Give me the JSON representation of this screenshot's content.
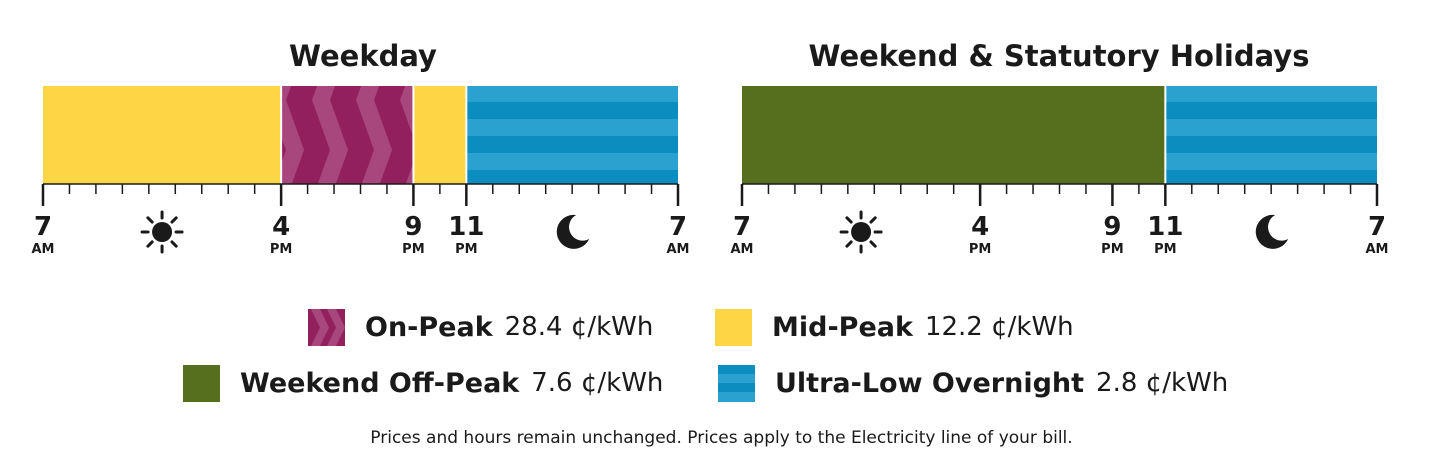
{
  "panels": [
    {
      "title": "Weekday",
      "segments": [
        {
          "from": 7,
          "to": 16,
          "period": "mid_peak"
        },
        {
          "from": 16,
          "to": 21,
          "period": "on_peak"
        },
        {
          "from": 21,
          "to": 23,
          "period": "mid_peak"
        },
        {
          "from": 23,
          "to": 31,
          "period": "ultra_low"
        }
      ],
      "labels": [
        {
          "hour": 7,
          "text": "7",
          "ampm": "AM"
        },
        {
          "hour": 16,
          "text": "4",
          "ampm": "PM"
        },
        {
          "hour": 21,
          "text": "9",
          "ampm": "PM"
        },
        {
          "hour": 23,
          "text": "11",
          "ampm": "PM"
        },
        {
          "hour": 31,
          "text": "7",
          "ampm": "AM"
        }
      ],
      "icons": [
        {
          "hour": 11.5,
          "name": "sun-icon"
        },
        {
          "hour": 27,
          "name": "moon-icon"
        }
      ]
    },
    {
      "title": "Weekend & Statutory Holidays",
      "segments": [
        {
          "from": 7,
          "to": 23,
          "period": "weekend_off_peak"
        },
        {
          "from": 23,
          "to": 31,
          "period": "ultra_low"
        }
      ],
      "labels": [
        {
          "hour": 7,
          "text": "7",
          "ampm": "AM"
        },
        {
          "hour": 16,
          "text": "4",
          "ampm": "PM"
        },
        {
          "hour": 21,
          "text": "9",
          "ampm": "PM"
        },
        {
          "hour": 23,
          "text": "11",
          "ampm": "PM"
        },
        {
          "hour": 31,
          "text": "7",
          "ampm": "AM"
        }
      ],
      "icons": [
        {
          "hour": 11.5,
          "name": "sun-icon"
        },
        {
          "hour": 27,
          "name": "moon-icon"
        }
      ]
    }
  ],
  "periods": {
    "on_peak": {
      "color": "#92205f",
      "chevron_color": "#a8477d"
    },
    "mid_peak": {
      "color": "#fdd646"
    },
    "weekend_off_peak": {
      "color": "#566f1e"
    },
    "ultra_low": {
      "color": "#0b8dc0",
      "stripe_color": "#2aa1cf"
    }
  },
  "legend": {
    "on_peak": {
      "name": "On-Peak",
      "price": "28.4 ¢/kWh"
    },
    "mid_peak": {
      "name": "Mid-Peak",
      "price": "12.2 ¢/kWh"
    },
    "weekend_off_peak": {
      "name": "Weekend Off-Peak",
      "price": "7.6 ¢/kWh"
    },
    "ultra_low": {
      "name": "Ultra-Low Overnight",
      "price": "2.8 ¢/kWh"
    }
  },
  "footnote": "Prices and hours remain unchanged. Prices apply to the Electricity line of your bill."
}
